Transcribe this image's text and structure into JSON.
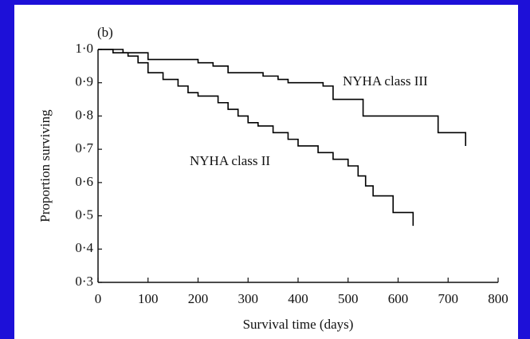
{
  "chart_data": {
    "type": "step",
    "panel_label": "(b)",
    "xlabel": "Survival time (days)",
    "ylabel": "Proportion surviving",
    "xlim": [
      0,
      800
    ],
    "xticks": [
      0,
      100,
      200,
      300,
      400,
      500,
      600,
      700,
      800
    ],
    "ylim": [
      0.3,
      1.0
    ],
    "yticks": [
      {
        "value": 0.3,
        "label": "0·3"
      },
      {
        "value": 0.4,
        "label": "0·4"
      },
      {
        "value": 0.5,
        "label": "0·5"
      },
      {
        "value": 0.6,
        "label": "0·6"
      },
      {
        "value": 0.7,
        "label": "0·7"
      },
      {
        "value": 0.8,
        "label": "0·8"
      },
      {
        "value": 0.9,
        "label": "0·9"
      },
      {
        "value": 1.0,
        "label": "1·0"
      }
    ],
    "series": [
      {
        "name": "NYHA class III",
        "color": "#000000",
        "x": [
          0,
          50,
          100,
          200,
          230,
          260,
          330,
          360,
          380,
          450,
          470,
          530,
          680,
          735
        ],
        "values": [
          1.0,
          0.99,
          0.97,
          0.96,
          0.95,
          0.93,
          0.92,
          0.91,
          0.9,
          0.89,
          0.85,
          0.8,
          0.75,
          0.71
        ]
      },
      {
        "name": "NYHA class II",
        "color": "#000000",
        "x": [
          0,
          30,
          60,
          80,
          100,
          130,
          160,
          180,
          200,
          240,
          260,
          280,
          300,
          320,
          350,
          380,
          400,
          440,
          470,
          500,
          520,
          535,
          550,
          590,
          630
        ],
        "values": [
          1.0,
          0.99,
          0.98,
          0.96,
          0.93,
          0.91,
          0.89,
          0.87,
          0.86,
          0.84,
          0.82,
          0.8,
          0.78,
          0.77,
          0.75,
          0.73,
          0.71,
          0.69,
          0.67,
          0.65,
          0.62,
          0.59,
          0.56,
          0.51,
          0.47
        ]
      }
    ]
  }
}
